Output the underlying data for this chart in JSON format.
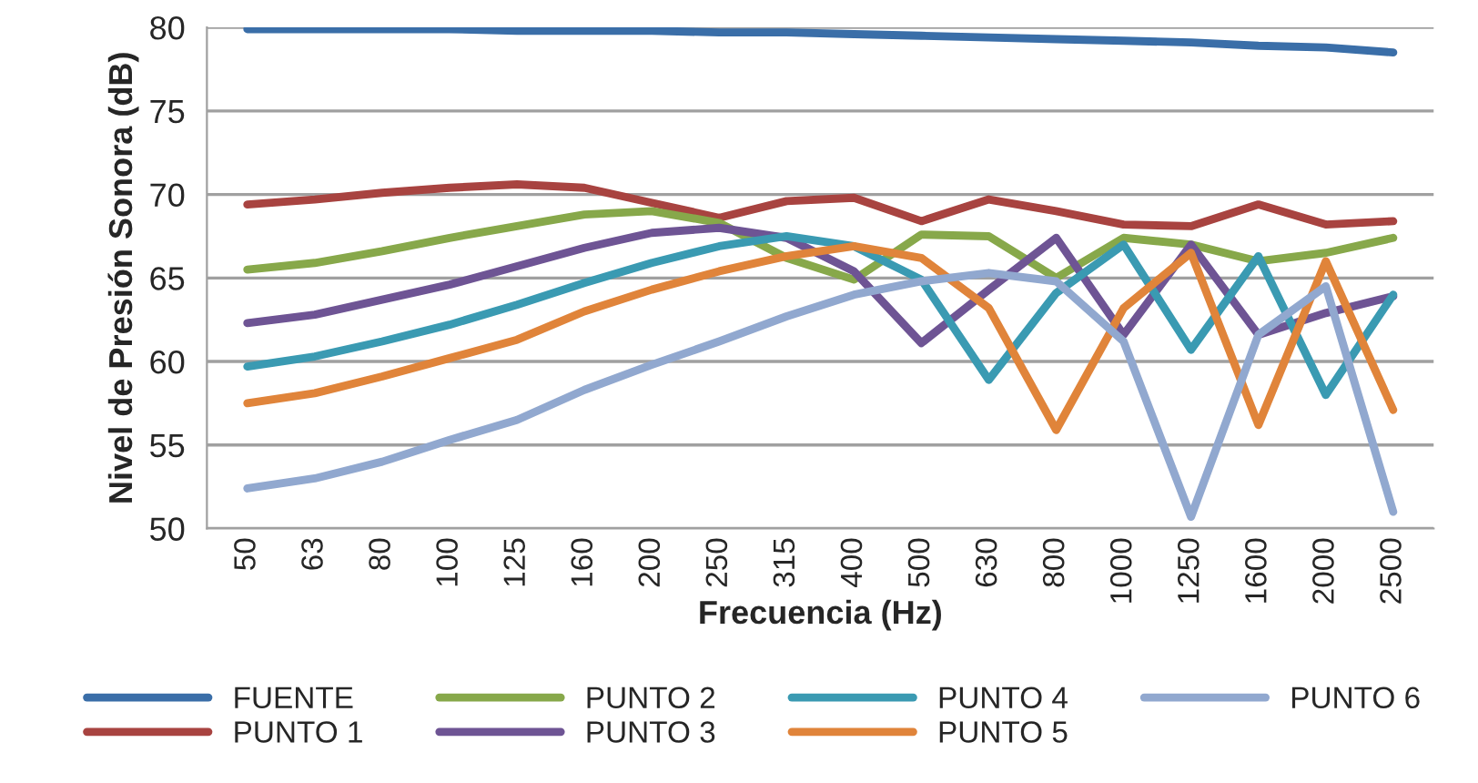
{
  "chart_data": {
    "type": "line",
    "xlabel": "Frecuencia (Hz)",
    "ylabel": "Nivel de Presión Sonora (dB)",
    "categories": [
      "50",
      "63",
      "80",
      "100",
      "125",
      "160",
      "200",
      "250",
      "315",
      "400",
      "500",
      "630",
      "800",
      "1000",
      "1250",
      "1600",
      "2000",
      "2500"
    ],
    "ylim": [
      50,
      80
    ],
    "yticks": [
      50,
      55,
      60,
      65,
      70,
      75,
      80
    ],
    "grid": "y",
    "legend": "bottom",
    "line_style": "solid",
    "marker": "none",
    "series": [
      {
        "name": "FUENTE",
        "color": "#3a6ea8",
        "values": [
          79.9,
          79.9,
          79.9,
          79.9,
          79.8,
          79.8,
          79.8,
          79.7,
          79.7,
          79.6,
          79.5,
          79.4,
          79.3,
          79.2,
          79.1,
          78.9,
          78.8,
          78.5
        ]
      },
      {
        "name": "PUNTO 1",
        "color": "#a84340",
        "values": [
          69.4,
          69.7,
          70.1,
          70.4,
          70.6,
          70.4,
          69.5,
          68.6,
          69.6,
          69.8,
          68.4,
          69.7,
          69.0,
          68.2,
          68.1,
          69.4,
          68.2,
          68.4
        ]
      },
      {
        "name": "PUNTO 2",
        "color": "#87a84a",
        "values": [
          65.5,
          65.9,
          66.6,
          67.4,
          68.1,
          68.8,
          69.0,
          68.3,
          66.2,
          64.9,
          67.6,
          67.5,
          65.0,
          67.4,
          67.0,
          66.0,
          66.5,
          67.4
        ]
      },
      {
        "name": "PUNTO 3",
        "color": "#6e5494",
        "values": [
          62.3,
          62.8,
          63.7,
          64.6,
          65.7,
          66.8,
          67.7,
          68.0,
          67.4,
          65.4,
          61.1,
          64.3,
          67.4,
          61.6,
          67.0,
          61.6,
          62.9,
          63.9
        ]
      },
      {
        "name": "PUNTO 4",
        "color": "#3a9ab2",
        "values": [
          59.7,
          60.3,
          61.2,
          62.2,
          63.4,
          64.7,
          65.9,
          66.9,
          67.5,
          66.9,
          64.9,
          58.9,
          64.1,
          67.0,
          60.7,
          66.3,
          58.0,
          64.0
        ]
      },
      {
        "name": "PUNTO 5",
        "color": "#e0843a",
        "values": [
          57.5,
          58.1,
          59.1,
          60.2,
          61.3,
          63.0,
          64.3,
          65.4,
          66.3,
          66.9,
          66.2,
          63.2,
          55.9,
          63.2,
          66.5,
          56.2,
          66.0,
          57.1
        ]
      },
      {
        "name": "PUNTO 6",
        "color": "#91a8cf",
        "values": [
          52.4,
          53.0,
          54.0,
          55.3,
          56.5,
          58.3,
          59.8,
          61.2,
          62.7,
          64.0,
          64.8,
          65.3,
          64.8,
          61.2,
          50.7,
          61.6,
          64.5,
          51.0
        ]
      }
    ]
  }
}
